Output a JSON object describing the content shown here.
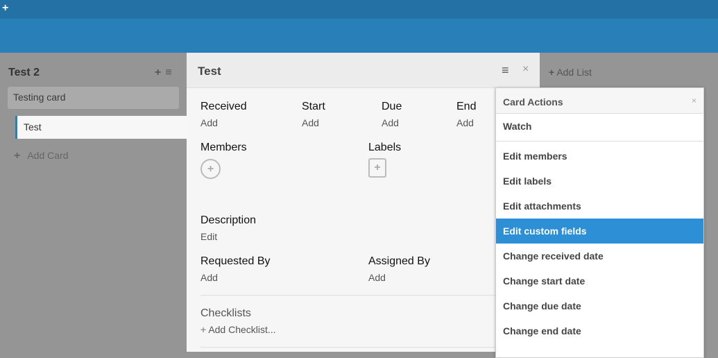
{
  "topbar": {
    "add_icon": "+"
  },
  "list": {
    "title": "Test 2",
    "add_icon": "+",
    "menu_icon": "≡",
    "cards": [
      "Testing card",
      "Test"
    ],
    "add_card": "Add Card"
  },
  "detail": {
    "title": "Test",
    "menu_icon": "≡",
    "close_icon": "×",
    "dates": [
      {
        "label": "Received",
        "value": "Add"
      },
      {
        "label": "Start",
        "value": "Add"
      },
      {
        "label": "Due",
        "value": "Add"
      },
      {
        "label": "End",
        "value": "Add"
      }
    ],
    "members_label": "Members",
    "labels_label": "Labels",
    "description_label": "Description",
    "description_value": "Edit",
    "requested_by_label": "Requested By",
    "requested_by_value": "Add",
    "assigned_by_label": "Assigned By",
    "assigned_by_value": "Add",
    "checklists_label": "Checklists",
    "add_checklist": "Add Checklist..."
  },
  "add_list": "Add List",
  "popup": {
    "title": "Card Actions",
    "close": "×",
    "watch": "Watch",
    "items": [
      "Edit members",
      "Edit labels",
      "Edit attachments",
      "Edit custom fields",
      "Change received date",
      "Change start date",
      "Change due date",
      "Change end date"
    ],
    "active_item": "Edit custom fields",
    "accent": "#2d8fd5"
  }
}
